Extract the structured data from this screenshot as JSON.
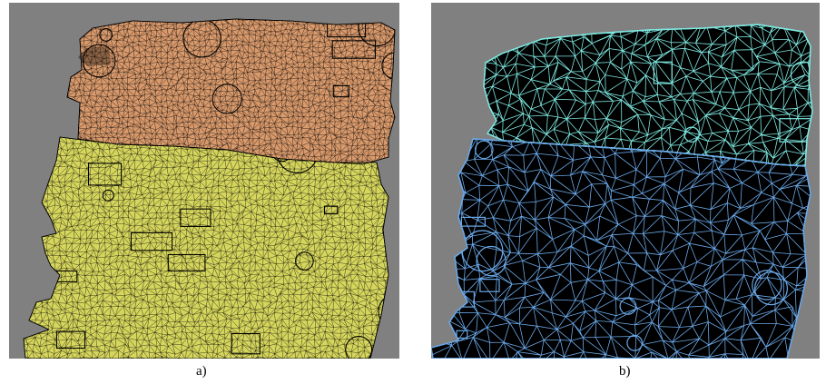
{
  "figure": {
    "panels": [
      {
        "id": "a",
        "caption": "a)",
        "background_color": "#808080",
        "top_part_color": "#d99a6c",
        "bottom_part_color": "#d6d65e",
        "wire_color": "#000000",
        "mesh_density": "fine"
      },
      {
        "id": "b",
        "caption": "b)",
        "background_color": "#808080",
        "top_part_color": "#7ee8e0",
        "bottom_part_color": "#6aa8e8",
        "fill_color": "#000000",
        "mesh_density": "coarse"
      }
    ]
  }
}
